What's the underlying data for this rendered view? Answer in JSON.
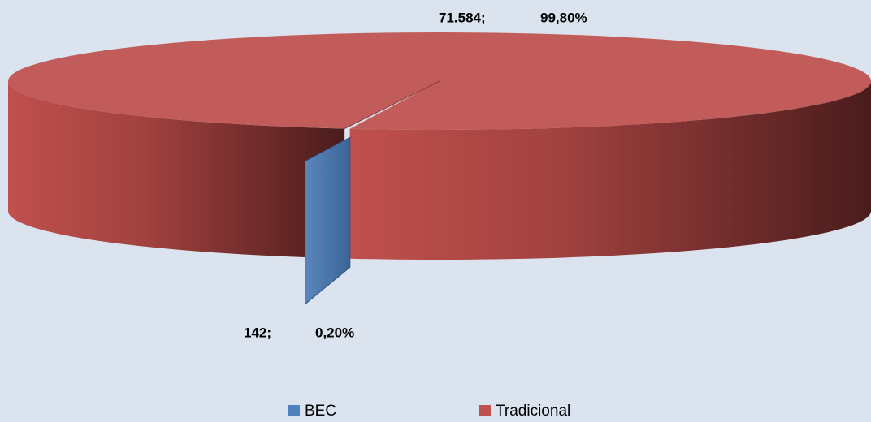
{
  "chart_data": {
    "type": "pie",
    "categories": [
      "BEC",
      "Tradicional"
    ],
    "values": [
      142,
      71584
    ],
    "value_labels": [
      "142;",
      "71.584;"
    ],
    "percents": [
      0.2,
      99.8
    ],
    "percent_labels": [
      "0,20%",
      "99,80%"
    ],
    "colors": [
      "#4f81bd",
      "#c0504d"
    ],
    "legend": "bottom"
  }
}
